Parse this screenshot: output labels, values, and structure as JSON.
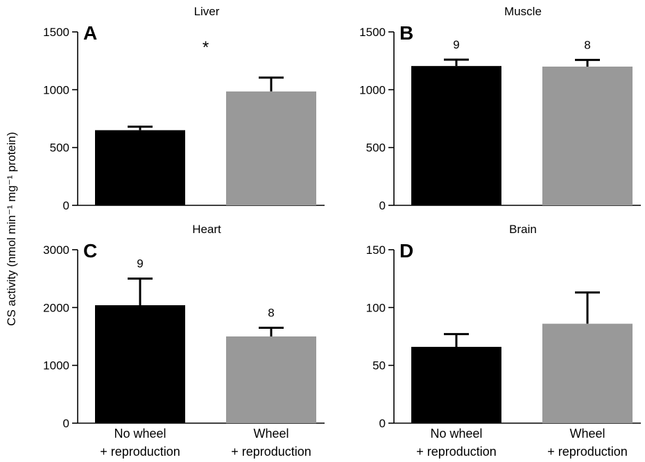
{
  "ylabel": "CS activity (nmol min⁻¹ mg⁻¹ protein)",
  "categories": [
    {
      "line1": "No wheel",
      "line2": "+ reproduction"
    },
    {
      "line1": "Wheel",
      "line2": "+ reproduction"
    }
  ],
  "colors": {
    "no_wheel": "#000000",
    "wheel": "#999999"
  },
  "chart_data": [
    {
      "type": "bar",
      "panel": "A",
      "title": "Liver",
      "categories": [
        "No wheel + reproduction",
        "Wheel + reproduction"
      ],
      "values": [
        650,
        985
      ],
      "errors": [
        30,
        120
      ],
      "bar_labels": [
        "",
        ""
      ],
      "annotation": "*",
      "ylim": [
        0,
        1500
      ],
      "yticks": [
        0,
        500,
        1000,
        1500
      ]
    },
    {
      "type": "bar",
      "panel": "B",
      "title": "Muscle",
      "categories": [
        "No wheel + reproduction",
        "Wheel + reproduction"
      ],
      "values": [
        1205,
        1200
      ],
      "errors": [
        55,
        58
      ],
      "bar_labels": [
        "9",
        "8"
      ],
      "annotation": "",
      "ylim": [
        0,
        1500
      ],
      "yticks": [
        0,
        500,
        1000,
        1500
      ]
    },
    {
      "type": "bar",
      "panel": "C",
      "title": "Heart",
      "categories": [
        "No wheel + reproduction",
        "Wheel + reproduction"
      ],
      "values": [
        2040,
        1500
      ],
      "errors": [
        460,
        150
      ],
      "bar_labels": [
        "9",
        "8"
      ],
      "annotation": "",
      "ylim": [
        0,
        3000
      ],
      "yticks": [
        0,
        1000,
        2000,
        3000
      ]
    },
    {
      "type": "bar",
      "panel": "D",
      "title": "Brain",
      "categories": [
        "No wheel + reproduction",
        "Wheel + reproduction"
      ],
      "values": [
        66,
        86
      ],
      "errors": [
        11,
        27
      ],
      "bar_labels": [
        "",
        ""
      ],
      "annotation": "",
      "ylim": [
        0,
        150
      ],
      "yticks": [
        0,
        50,
        100,
        150
      ]
    }
  ]
}
